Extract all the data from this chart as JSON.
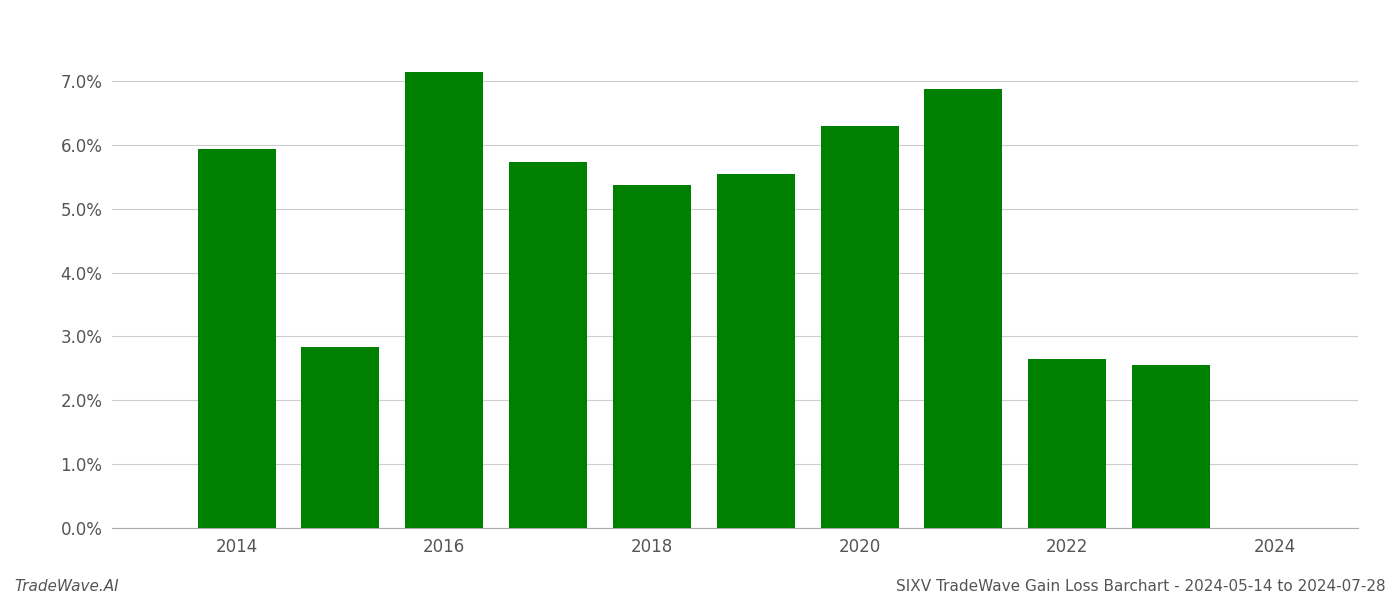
{
  "years": [
    2014,
    2015,
    2016,
    2017,
    2018,
    2019,
    2020,
    2021,
    2022,
    2023
  ],
  "values": [
    0.0593,
    0.0283,
    0.0715,
    0.0573,
    0.0538,
    0.0555,
    0.063,
    0.0688,
    0.0265,
    0.0255
  ],
  "bar_color": "#008000",
  "background_color": "#ffffff",
  "grid_color": "#cccccc",
  "title_right": "SIXV TradeWave Gain Loss Barchart - 2024-05-14 to 2024-07-28",
  "title_left": "TradeWave.AI",
  "ylim": [
    0,
    0.078
  ],
  "yticks": [
    0.0,
    0.01,
    0.02,
    0.03,
    0.04,
    0.05,
    0.06,
    0.07
  ],
  "tick_fontsize": 12,
  "footer_fontsize": 11,
  "bar_width": 0.75,
  "xlim_left": 2012.8,
  "xlim_right": 2024.8,
  "xticks": [
    2014,
    2016,
    2018,
    2020,
    2022,
    2024
  ]
}
